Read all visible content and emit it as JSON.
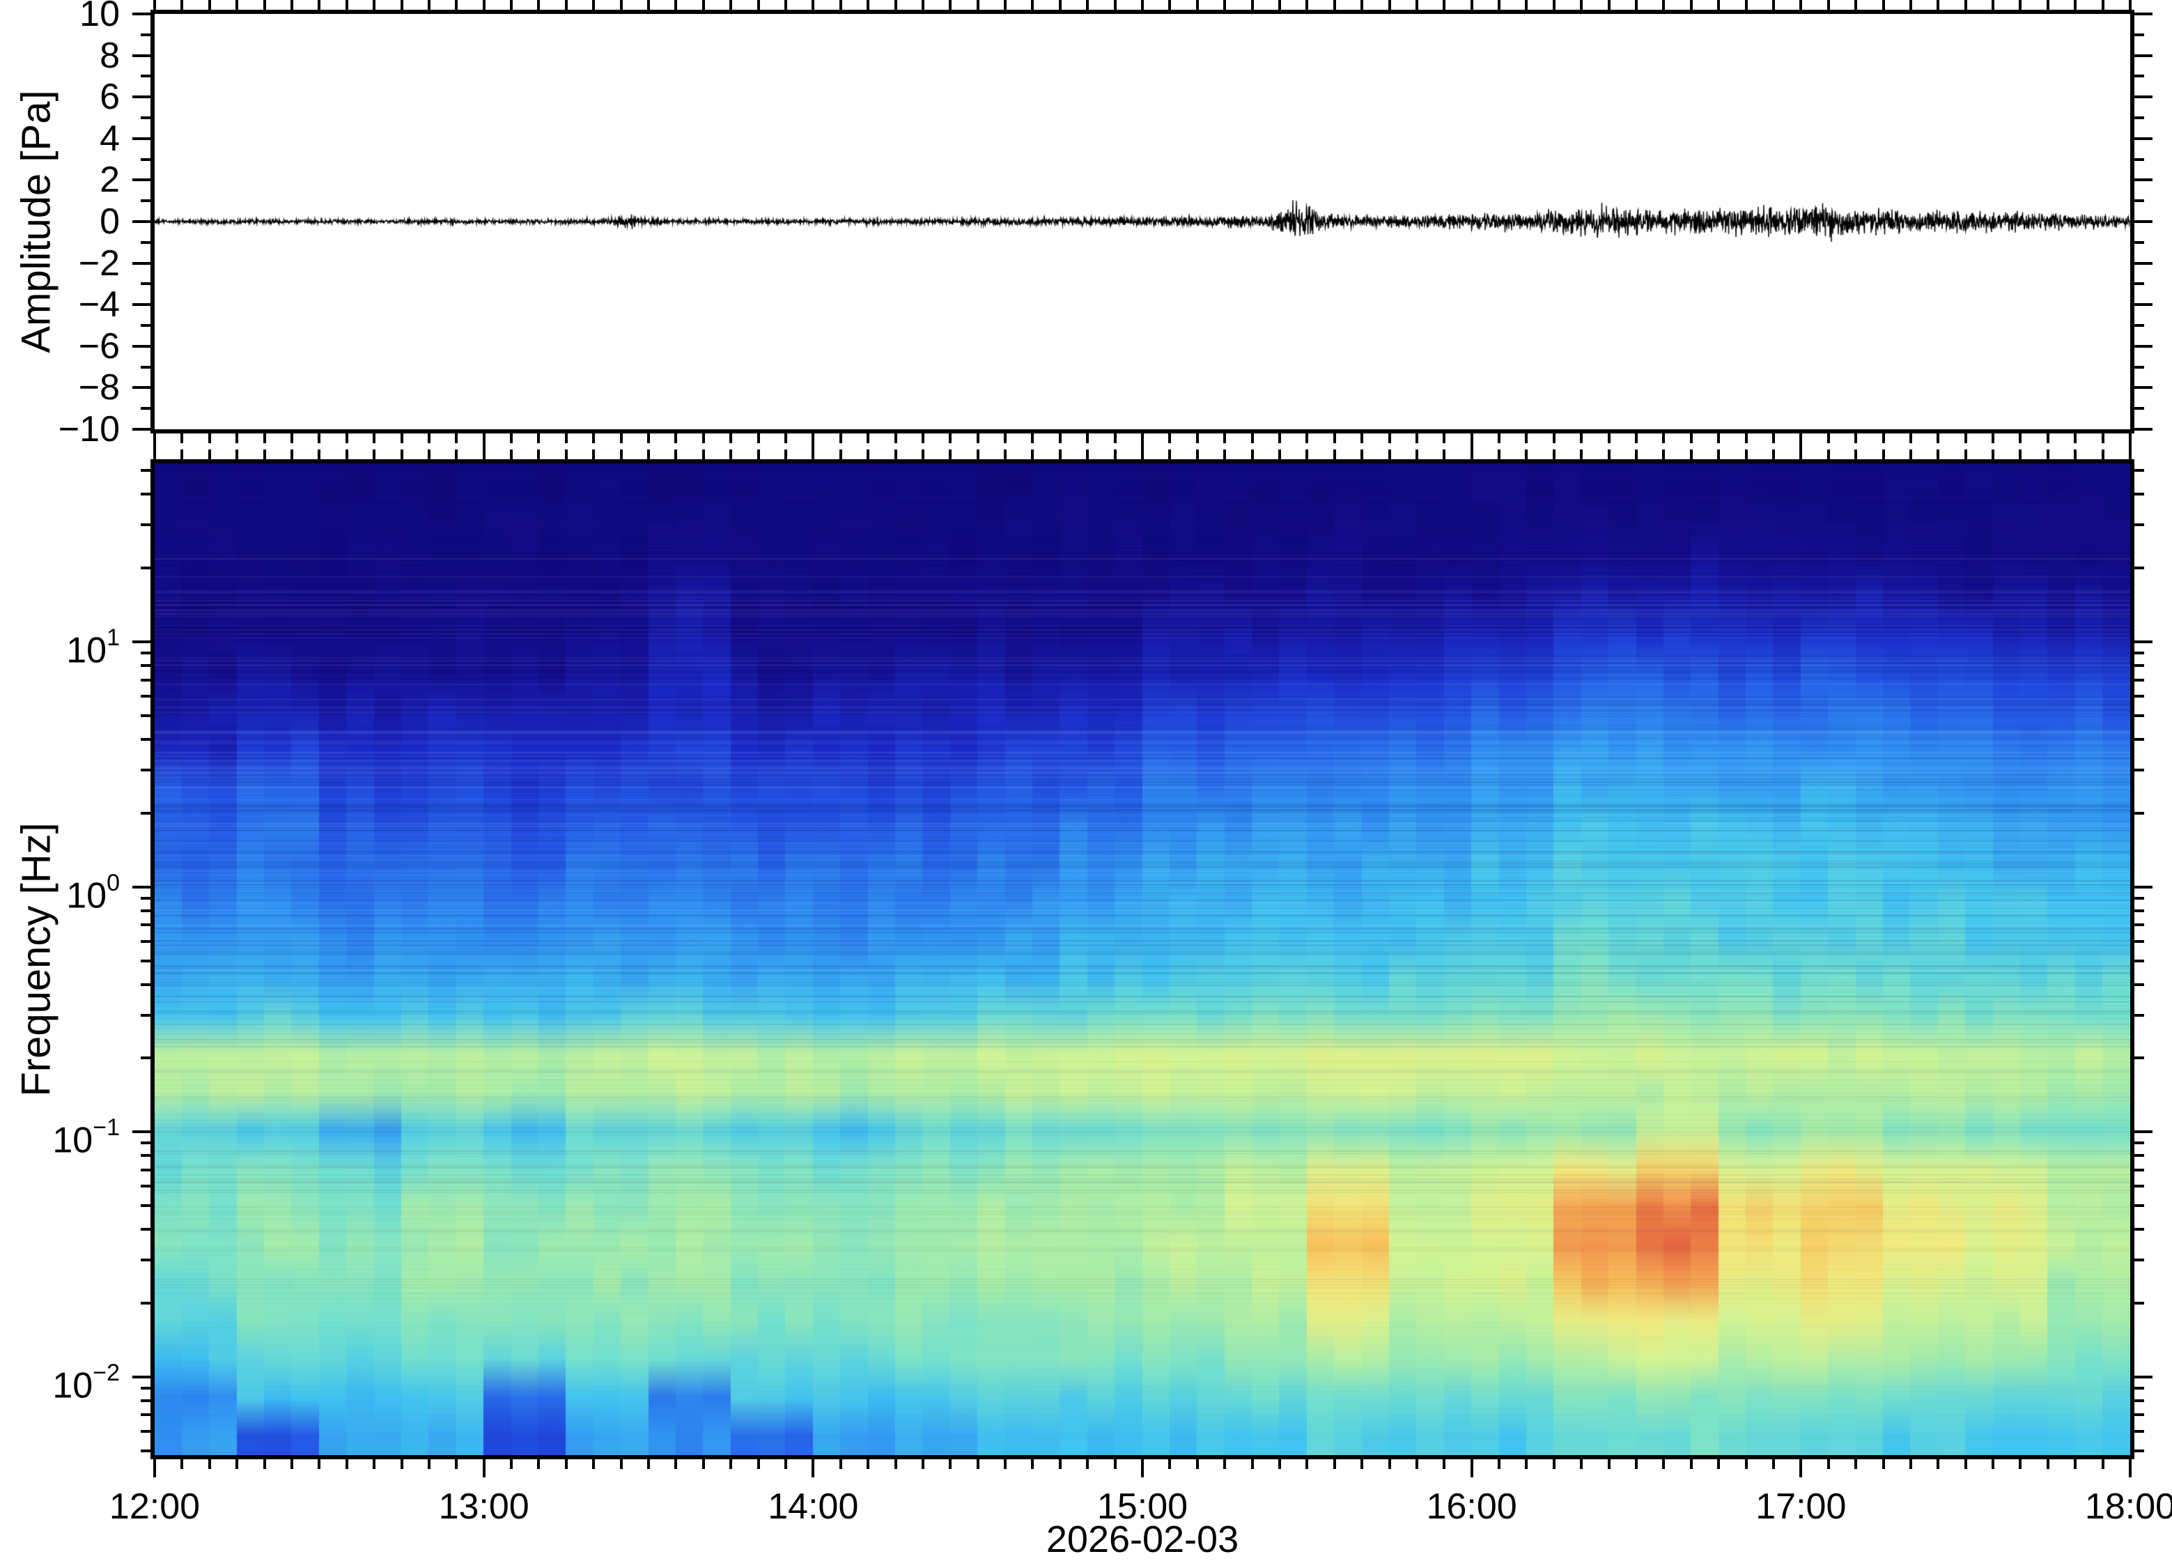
{
  "figure": {
    "background": "#ffffff",
    "frame_color": "#000000",
    "font_color": "#000000",
    "date_label": "2026-02-03"
  },
  "top_panel": {
    "ylabel": "Amplitude [Pa]",
    "ytick_labels": [
      "10",
      "8",
      "6",
      "4",
      "2",
      "0",
      "−2",
      "−4",
      "−6",
      "−8",
      "−10"
    ],
    "ytick_values": [
      10,
      8,
      6,
      4,
      2,
      0,
      -2,
      -4,
      -6,
      -8,
      -10
    ],
    "yminor_step": 1
  },
  "bottom_panel": {
    "ylabel": "Frequency [Hz]",
    "decade_labels": [
      {
        "mant": "10",
        "exp": "1",
        "freq": 10
      },
      {
        "mant": "10",
        "exp": "0",
        "freq": 1
      },
      {
        "mant": "10",
        "exp": "−1",
        "freq": 0.1
      },
      {
        "mant": "10",
        "exp": "−2",
        "freq": 0.01
      }
    ]
  },
  "x_axis": {
    "hour_labels": [
      "12:00",
      "13:00",
      "14:00",
      "15:00",
      "16:00",
      "17:00",
      "18:00"
    ],
    "hours": [
      12,
      13,
      14,
      15,
      16,
      17,
      18
    ],
    "minor_step_minutes": 5
  },
  "chart_data": [
    {
      "type": "line",
      "name": "infrasound-waveform",
      "ylabel": "Amplitude [Pa]",
      "ylim": [
        -10,
        10
      ],
      "x_range_hours": [
        12,
        18
      ],
      "envelope_bin_minutes": 5,
      "envelope_pa": [
        0.05,
        0.05,
        0.06,
        0.05,
        0.06,
        0.05,
        0.06,
        0.06,
        0.05,
        0.06,
        0.06,
        0.06,
        0.06,
        0.06,
        0.06,
        0.07,
        0.06,
        0.18,
        0.08,
        0.06,
        0.07,
        0.06,
        0.07,
        0.07,
        0.07,
        0.07,
        0.08,
        0.07,
        0.08,
        0.08,
        0.09,
        0.08,
        0.09,
        0.1,
        0.1,
        0.11,
        0.12,
        0.12,
        0.13,
        0.14,
        0.15,
        0.5,
        0.22,
        0.16,
        0.15,
        0.16,
        0.18,
        0.2,
        0.22,
        0.25,
        0.28,
        0.3,
        0.5,
        0.35,
        0.3,
        0.3,
        0.32,
        0.35,
        0.4,
        0.38,
        0.45,
        0.32,
        0.3,
        0.28,
        0.3,
        0.28,
        0.26,
        0.25,
        0.22,
        0.2,
        0.18,
        0.15
      ],
      "line_color": "#000000"
    },
    {
      "type": "heatmap",
      "name": "infrasound-spectrogram",
      "ylabel": "Frequency [Hz]",
      "yscale": "log",
      "ylim_hz": [
        0.0048,
        53.5
      ],
      "x_range_hours": [
        12,
        18
      ],
      "col_bin_minutes": 15,
      "col_times": [
        "12:00",
        "12:15",
        "12:30",
        "12:45",
        "13:00",
        "13:15",
        "13:30",
        "13:45",
        "14:00",
        "14:15",
        "14:30",
        "14:45",
        "15:00",
        "15:15",
        "15:30",
        "15:45",
        "16:00",
        "16:15",
        "16:30",
        "16:45",
        "17:00",
        "17:15",
        "17:30",
        "17:45"
      ],
      "row_freqs_hz": [
        45,
        32,
        22,
        15.5,
        11,
        7.7,
        5.4,
        3.8,
        2.7,
        1.9,
        1.3,
        0.93,
        0.65,
        0.46,
        0.32,
        0.225,
        0.16,
        0.11,
        0.079,
        0.055,
        0.039,
        0.027,
        0.019,
        0.0135,
        0.0095,
        0.0067
      ],
      "values": [
        [
          0.04,
          0.04,
          0.04,
          0.04,
          0.04,
          0.04,
          0.04,
          0.04,
          0.04,
          0.04,
          0.04,
          0.04,
          0.04,
          0.04,
          0.045,
          0.045,
          0.05,
          0.05,
          0.05,
          0.05,
          0.05,
          0.05,
          0.05,
          0.05
        ],
        [
          0.045,
          0.04,
          0.045,
          0.04,
          0.045,
          0.045,
          0.05,
          0.045,
          0.04,
          0.045,
          0.045,
          0.05,
          0.05,
          0.05,
          0.055,
          0.055,
          0.06,
          0.06,
          0.065,
          0.06,
          0.06,
          0.06,
          0.055,
          0.055
        ],
        [
          0.05,
          0.055,
          0.05,
          0.055,
          0.05,
          0.055,
          0.08,
          0.055,
          0.05,
          0.055,
          0.06,
          0.06,
          0.06,
          0.065,
          0.07,
          0.07,
          0.08,
          0.09,
          0.1,
          0.1,
          0.09,
          0.08,
          0.08,
          0.075
        ],
        [
          0.06,
          0.065,
          0.06,
          0.07,
          0.065,
          0.07,
          0.12,
          0.07,
          0.065,
          0.07,
          0.075,
          0.08,
          0.09,
          0.1,
          0.1,
          0.11,
          0.12,
          0.15,
          0.15,
          0.14,
          0.15,
          0.13,
          0.12,
          0.12
        ],
        [
          0.08,
          0.09,
          0.08,
          0.09,
          0.085,
          0.09,
          0.15,
          0.09,
          0.09,
          0.095,
          0.1,
          0.11,
          0.13,
          0.14,
          0.15,
          0.16,
          0.18,
          0.22,
          0.22,
          0.2,
          0.22,
          0.19,
          0.18,
          0.17
        ],
        [
          0.1,
          0.13,
          0.11,
          0.12,
          0.11,
          0.13,
          0.18,
          0.12,
          0.12,
          0.13,
          0.14,
          0.15,
          0.18,
          0.19,
          0.2,
          0.22,
          0.26,
          0.3,
          0.3,
          0.28,
          0.3,
          0.27,
          0.26,
          0.25
        ],
        [
          0.14,
          0.18,
          0.15,
          0.16,
          0.15,
          0.17,
          0.2,
          0.16,
          0.16,
          0.17,
          0.18,
          0.2,
          0.24,
          0.25,
          0.26,
          0.28,
          0.32,
          0.36,
          0.36,
          0.34,
          0.35,
          0.33,
          0.31,
          0.3
        ],
        [
          0.18,
          0.24,
          0.2,
          0.21,
          0.2,
          0.22,
          0.24,
          0.21,
          0.21,
          0.22,
          0.24,
          0.26,
          0.3,
          0.31,
          0.32,
          0.34,
          0.38,
          0.42,
          0.42,
          0.4,
          0.41,
          0.39,
          0.37,
          0.36
        ],
        [
          0.3,
          0.32,
          0.26,
          0.26,
          0.24,
          0.27,
          0.28,
          0.26,
          0.26,
          0.27,
          0.29,
          0.31,
          0.36,
          0.37,
          0.38,
          0.39,
          0.43,
          0.46,
          0.46,
          0.44,
          0.45,
          0.43,
          0.41,
          0.4
        ],
        [
          0.32,
          0.34,
          0.3,
          0.3,
          0.28,
          0.31,
          0.32,
          0.3,
          0.3,
          0.31,
          0.33,
          0.36,
          0.4,
          0.41,
          0.42,
          0.43,
          0.47,
          0.5,
          0.5,
          0.48,
          0.49,
          0.47,
          0.45,
          0.44
        ],
        [
          0.34,
          0.36,
          0.33,
          0.34,
          0.32,
          0.35,
          0.36,
          0.34,
          0.34,
          0.35,
          0.37,
          0.4,
          0.44,
          0.45,
          0.45,
          0.46,
          0.49,
          0.52,
          0.52,
          0.5,
          0.51,
          0.49,
          0.47,
          0.47
        ],
        [
          0.37,
          0.39,
          0.36,
          0.37,
          0.36,
          0.38,
          0.39,
          0.37,
          0.37,
          0.38,
          0.4,
          0.43,
          0.46,
          0.47,
          0.47,
          0.48,
          0.5,
          0.54,
          0.53,
          0.52,
          0.52,
          0.51,
          0.5,
          0.5
        ],
        [
          0.41,
          0.43,
          0.4,
          0.41,
          0.4,
          0.42,
          0.43,
          0.41,
          0.4,
          0.42,
          0.44,
          0.46,
          0.48,
          0.49,
          0.49,
          0.5,
          0.52,
          0.56,
          0.55,
          0.54,
          0.54,
          0.53,
          0.52,
          0.52
        ],
        [
          0.45,
          0.47,
          0.44,
          0.45,
          0.44,
          0.46,
          0.47,
          0.45,
          0.44,
          0.46,
          0.48,
          0.5,
          0.52,
          0.53,
          0.53,
          0.54,
          0.56,
          0.6,
          0.58,
          0.57,
          0.57,
          0.56,
          0.55,
          0.55
        ],
        [
          0.52,
          0.54,
          0.5,
          0.52,
          0.5,
          0.53,
          0.54,
          0.52,
          0.51,
          0.53,
          0.55,
          0.57,
          0.58,
          0.6,
          0.6,
          0.6,
          0.62,
          0.64,
          0.63,
          0.62,
          0.62,
          0.61,
          0.6,
          0.6
        ],
        [
          0.7,
          0.72,
          0.68,
          0.7,
          0.69,
          0.71,
          0.72,
          0.7,
          0.69,
          0.71,
          0.72,
          0.73,
          0.74,
          0.75,
          0.76,
          0.76,
          0.75,
          0.74,
          0.74,
          0.73,
          0.73,
          0.72,
          0.71,
          0.7
        ],
        [
          0.68,
          0.7,
          0.66,
          0.68,
          0.67,
          0.69,
          0.7,
          0.68,
          0.67,
          0.69,
          0.7,
          0.71,
          0.72,
          0.72,
          0.72,
          0.72,
          0.71,
          0.71,
          0.7,
          0.7,
          0.7,
          0.69,
          0.68,
          0.67
        ],
        [
          0.55,
          0.52,
          0.44,
          0.55,
          0.5,
          0.56,
          0.55,
          0.52,
          0.5,
          0.55,
          0.57,
          0.58,
          0.6,
          0.62,
          0.62,
          0.6,
          0.62,
          0.65,
          0.72,
          0.62,
          0.65,
          0.62,
          0.6,
          0.6
        ],
        [
          0.58,
          0.6,
          0.56,
          0.6,
          0.58,
          0.6,
          0.62,
          0.6,
          0.58,
          0.62,
          0.64,
          0.66,
          0.68,
          0.7,
          0.78,
          0.7,
          0.74,
          0.8,
          0.85,
          0.76,
          0.8,
          0.74,
          0.75,
          0.68
        ],
        [
          0.6,
          0.63,
          0.6,
          0.64,
          0.62,
          0.64,
          0.65,
          0.63,
          0.62,
          0.65,
          0.66,
          0.66,
          0.68,
          0.72,
          0.85,
          0.72,
          0.78,
          0.92,
          0.98,
          0.85,
          0.88,
          0.8,
          0.78,
          0.7
        ],
        [
          0.6,
          0.64,
          0.62,
          0.66,
          0.63,
          0.66,
          0.66,
          0.64,
          0.64,
          0.66,
          0.68,
          0.68,
          0.7,
          0.72,
          0.9,
          0.73,
          0.76,
          0.95,
          1.0,
          0.82,
          0.85,
          0.8,
          0.76,
          0.7
        ],
        [
          0.58,
          0.62,
          0.6,
          0.64,
          0.62,
          0.64,
          0.65,
          0.62,
          0.62,
          0.64,
          0.66,
          0.66,
          0.68,
          0.7,
          0.84,
          0.72,
          0.74,
          0.9,
          0.94,
          0.8,
          0.82,
          0.76,
          0.74,
          0.66
        ],
        [
          0.55,
          0.6,
          0.58,
          0.62,
          0.6,
          0.62,
          0.62,
          0.6,
          0.6,
          0.62,
          0.63,
          0.63,
          0.64,
          0.66,
          0.76,
          0.68,
          0.7,
          0.8,
          0.8,
          0.74,
          0.78,
          0.72,
          0.7,
          0.64
        ],
        [
          0.5,
          0.56,
          0.54,
          0.58,
          0.55,
          0.58,
          0.58,
          0.56,
          0.56,
          0.58,
          0.6,
          0.6,
          0.6,
          0.62,
          0.68,
          0.64,
          0.65,
          0.7,
          0.72,
          0.68,
          0.7,
          0.66,
          0.65,
          0.6
        ],
        [
          0.4,
          0.5,
          0.48,
          0.52,
          0.33,
          0.5,
          0.36,
          0.52,
          0.5,
          0.52,
          0.54,
          0.54,
          0.55,
          0.56,
          0.58,
          0.58,
          0.58,
          0.6,
          0.62,
          0.6,
          0.6,
          0.58,
          0.56,
          0.55
        ],
        [
          0.42,
          0.3,
          0.44,
          0.46,
          0.28,
          0.44,
          0.4,
          0.33,
          0.44,
          0.46,
          0.48,
          0.48,
          0.5,
          0.52,
          0.54,
          0.52,
          0.52,
          0.56,
          0.58,
          0.55,
          0.55,
          0.52,
          0.5,
          0.5
        ]
      ],
      "colormap_stops": [
        [
          0.0,
          "#0c0775"
        ],
        [
          0.1,
          "#140d8e"
        ],
        [
          0.2,
          "#1b2ac8"
        ],
        [
          0.3,
          "#2458e6"
        ],
        [
          0.4,
          "#2f8ff2"
        ],
        [
          0.5,
          "#41c4f1"
        ],
        [
          0.58,
          "#72e0cf"
        ],
        [
          0.66,
          "#a5ecab"
        ],
        [
          0.74,
          "#d4f493"
        ],
        [
          0.82,
          "#f2ea7d"
        ],
        [
          0.9,
          "#f8c05a"
        ],
        [
          0.96,
          "#f2924c"
        ],
        [
          1.0,
          "#e4653f"
        ]
      ]
    }
  ]
}
